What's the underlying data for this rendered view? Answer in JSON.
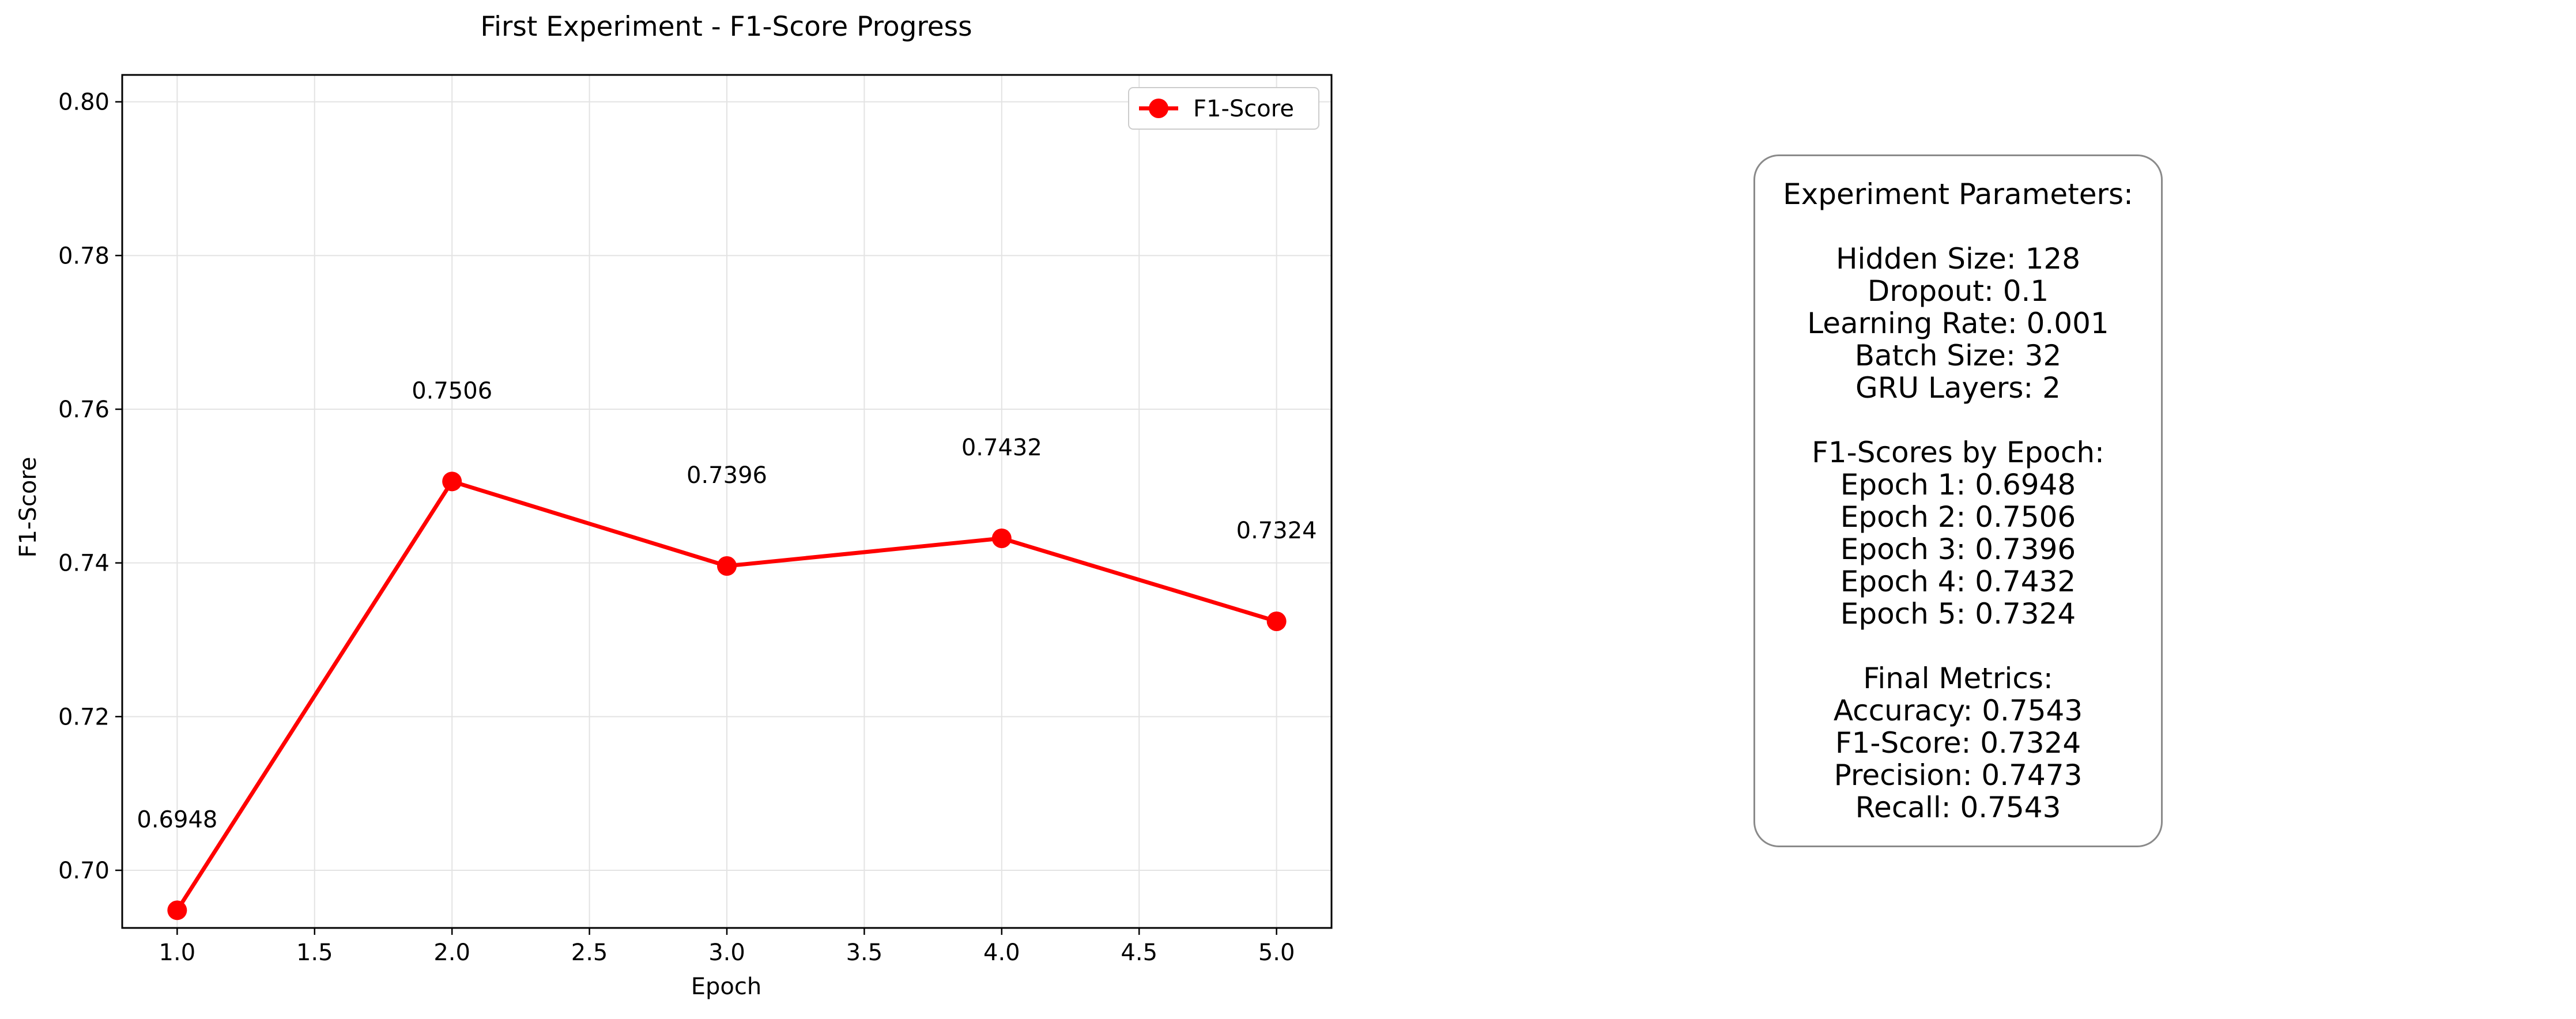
{
  "chart_data": {
    "type": "line",
    "title": "First Experiment - F1-Score Progress",
    "xlabel": "Epoch",
    "ylabel": "F1-Score",
    "x": [
      1,
      2,
      3,
      4,
      5
    ],
    "series": [
      {
        "name": "F1-Score",
        "values": [
          0.6948,
          0.7506,
          0.7396,
          0.7432,
          0.7324
        ],
        "color": "#ff0000",
        "marker": "circle"
      }
    ],
    "data_labels": [
      "0.6948",
      "0.7506",
      "0.7396",
      "0.7432",
      "0.7324"
    ],
    "xlim": [
      0.8,
      5.2
    ],
    "ylim": [
      0.6925,
      0.8035
    ],
    "xticks": [
      1.0,
      1.5,
      2.0,
      2.5,
      3.0,
      3.5,
      4.0,
      4.5,
      5.0
    ],
    "xtick_labels": [
      "1.0",
      "1.5",
      "2.0",
      "2.5",
      "3.0",
      "3.5",
      "4.0",
      "4.5",
      "5.0"
    ],
    "yticks": [
      0.7,
      0.72,
      0.74,
      0.76,
      0.78,
      0.8
    ],
    "ytick_labels": [
      "0.70",
      "0.72",
      "0.74",
      "0.76",
      "0.78",
      "0.80"
    ],
    "grid": true,
    "legend_position": "top-right"
  },
  "params": {
    "heading": "Experiment Parameters:",
    "hyper": [
      "Hidden Size: 128",
      "Dropout: 0.1",
      "Learning Rate: 0.001",
      "Batch Size: 32",
      "GRU Layers: 2"
    ],
    "scores_heading": "F1-Scores by Epoch:",
    "scores": [
      "Epoch 1: 0.6948",
      "Epoch 2: 0.7506",
      "Epoch 3: 0.7396",
      "Epoch 4: 0.7432",
      "Epoch 5: 0.7324"
    ],
    "final_heading": "Final Metrics:",
    "final": [
      "Accuracy: 0.7543",
      "F1-Score: 0.7324",
      "Precision: 0.7473",
      "Recall: 0.7543"
    ]
  }
}
